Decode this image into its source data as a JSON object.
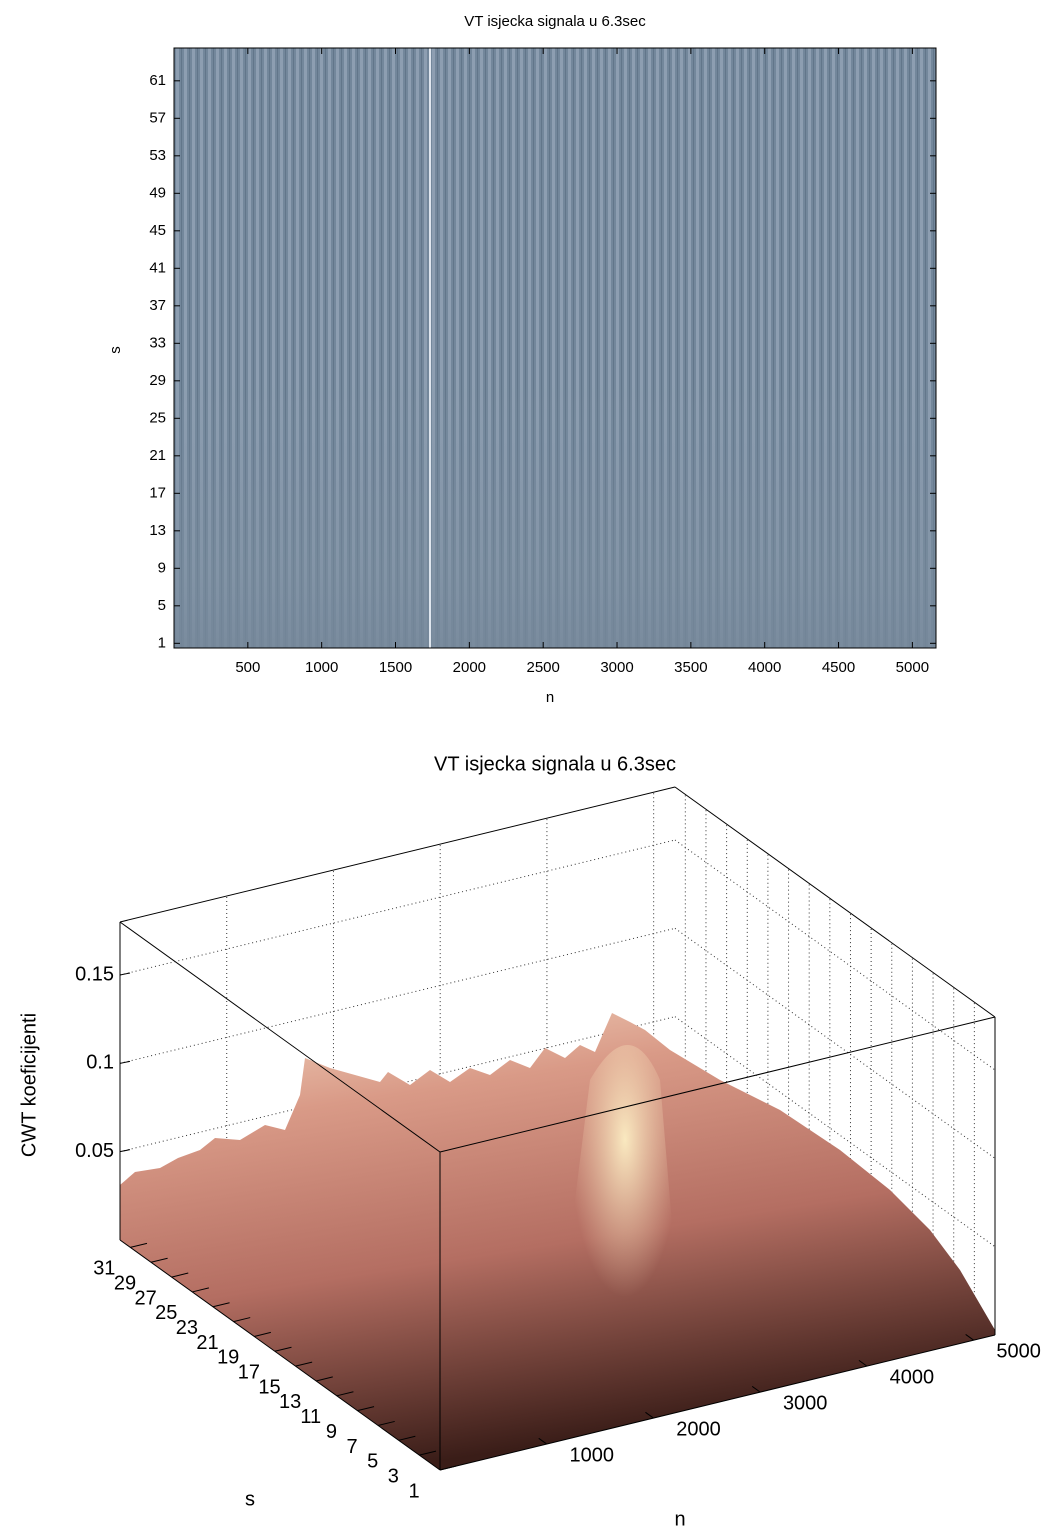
{
  "chart_data": [
    {
      "type": "heatmap",
      "title": "VT isjecka signala u 6.3sec",
      "xlabel": "n",
      "ylabel": "s",
      "xlim": [
        0,
        5160
      ],
      "ylim": [
        0.5,
        64.5
      ],
      "xticks": [
        500,
        1000,
        1500,
        2000,
        2500,
        3000,
        3500,
        4000,
        4500,
        5000
      ],
      "yticks": [
        1,
        5,
        9,
        13,
        17,
        21,
        25,
        29,
        33,
        37,
        41,
        45,
        49,
        53,
        57,
        61
      ]
    },
    {
      "type": "surface",
      "title": "VT isjecka signala u 6.3sec",
      "xlabel": "n",
      "ylabel": "s",
      "zlabel": "CWT koeficijenti",
      "xlim": [
        0,
        5200
      ],
      "ylim": [
        1,
        32
      ],
      "zlim": [
        0,
        0.18
      ],
      "xticks": [
        1000,
        2000,
        3000,
        4000,
        5000
      ],
      "yticks": [
        1,
        3,
        5,
        7,
        9,
        11,
        13,
        15,
        17,
        19,
        21,
        23,
        25,
        27,
        29,
        31
      ],
      "zticks": [
        0.05,
        0.1,
        0.15
      ],
      "grid": true
    }
  ]
}
